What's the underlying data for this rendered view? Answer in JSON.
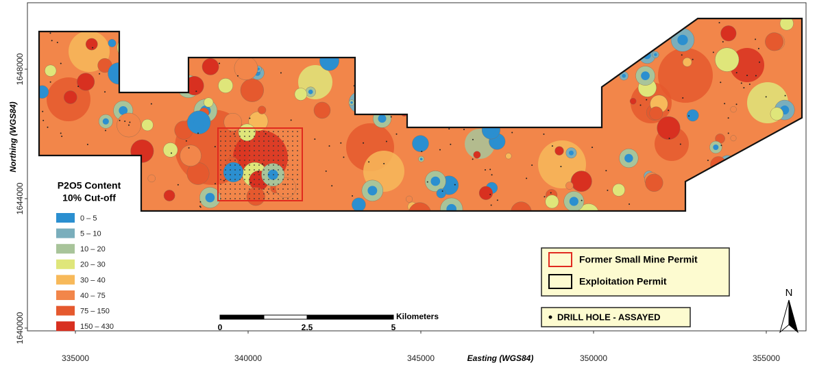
{
  "map": {
    "xlabel": "Easting (WGS84)",
    "ylabel": "Northing (WGS84)",
    "xlim": [
      333611,
      356151
    ],
    "ylim": [
      1639915,
      1650053
    ],
    "xticks": [
      335000,
      340000,
      345000,
      350000,
      355000
    ],
    "yticks": [
      1640000,
      1644000,
      1648000
    ],
    "legend": {
      "title": "P2O5 Content",
      "subtitle": "10% Cut-off",
      "items": [
        {
          "label": "0 – 5",
          "color": "#2b8fd0"
        },
        {
          "label": "5 – 10",
          "color": "#7aaebc"
        },
        {
          "label": "10 – 20",
          "color": "#a8c49a"
        },
        {
          "label": "20 – 30",
          "color": "#dfe67a"
        },
        {
          "label": "30 – 40",
          "color": "#f7b95a"
        },
        {
          "label": "40 – 75",
          "color": "#f2864a"
        },
        {
          "label": "75 – 150",
          "color": "#e5592e"
        },
        {
          "label": "150 – 430",
          "color": "#d83020"
        }
      ]
    },
    "permits": [
      {
        "label": "Former Small Mine Permit",
        "color": "#e02a1f"
      },
      {
        "label": "Exploitation Permit",
        "color": "#000000"
      }
    ],
    "drill_hole_label": "DRILL HOLE - ASSAYED",
    "scale_bar": {
      "unit": "Kilometers",
      "labels": [
        "0",
        "2.5",
        "5"
      ]
    },
    "north": "N"
  }
}
